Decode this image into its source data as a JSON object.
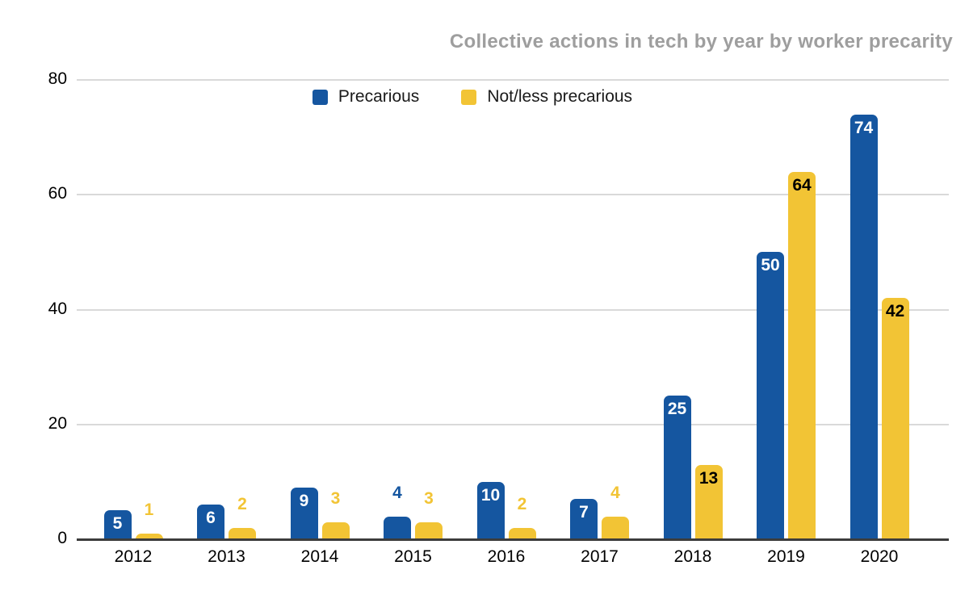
{
  "chart_data": {
    "type": "bar",
    "title": "Collective actions in tech by year by worker precarity",
    "categories": [
      "2012",
      "2013",
      "2014",
      "2015",
      "2016",
      "2017",
      "2018",
      "2019",
      "2020"
    ],
    "series": [
      {
        "name": "Precarious",
        "color": "#1556A0",
        "values": [
          5,
          6,
          9,
          4,
          10,
          7,
          25,
          50,
          74
        ]
      },
      {
        "name": "Not/less precarious",
        "color": "#F2C435",
        "values": [
          1,
          2,
          3,
          3,
          2,
          4,
          13,
          64,
          42
        ]
      }
    ],
    "xlabel": "",
    "ylabel": "",
    "y_ticks": [
      0,
      20,
      40,
      60,
      80
    ],
    "ylim": [
      0,
      80
    ],
    "grid": true,
    "legend_position": "top-center"
  },
  "legend": {
    "items": [
      {
        "label": "Precarious",
        "color": "#1556A0"
      },
      {
        "label": "Not/less precarious",
        "color": "#F2C435"
      }
    ]
  },
  "colors": {
    "series_precarious": "#1556A0",
    "series_not_less_precarious": "#F2C435",
    "title_text": "#9E9E9E",
    "gridline": "#D9D9D9",
    "axis_line": "#3C3C3C",
    "inside_label_on_blue": "#FFFFFF",
    "inside_label_on_yellow": "#000000",
    "background": "#FFFFFF"
  }
}
